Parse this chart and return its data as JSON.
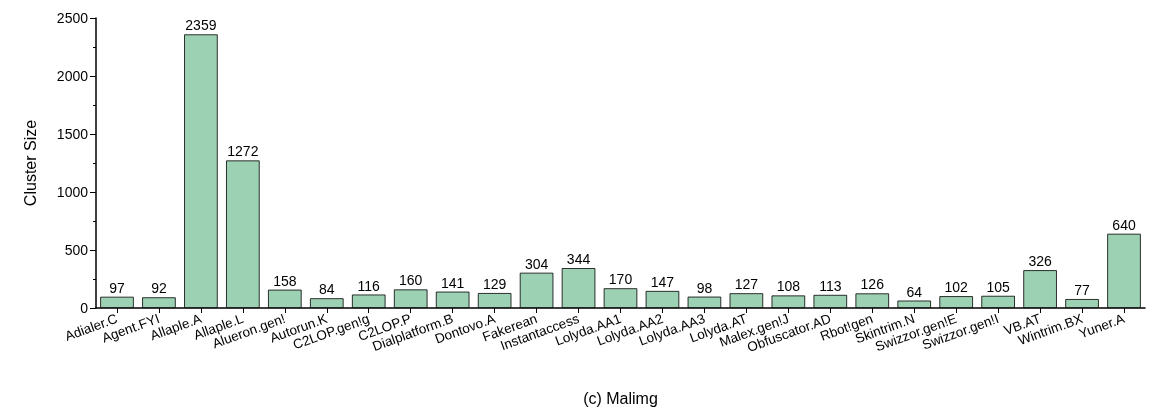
{
  "chart_data": {
    "type": "bar",
    "xlabel": "(c) Malimg",
    "ylabel": "Cluster Size",
    "categories": [
      "Adialer.C",
      "Agent.FYI",
      "Allaple.A",
      "Allaple.L",
      "Alueron.gen!",
      "Autorun.K",
      "C2LOP.gen!g",
      "C2LOP.P",
      "Dialplatform.B",
      "Dontovo.A",
      "Fakerean",
      "Instantaccess",
      "Lolyda.AA1",
      "Lolyda.AA2",
      "Lolyda.AA3",
      "Lolyda.AT",
      "Malex.gen!J",
      "Obfuscator.AD",
      "Rbot!gen",
      "Skintrim.N",
      "Swizzor.gen!E",
      "Swizzor.gen!I",
      "VB.AT",
      "Wintrim.BX",
      "Yuner.A"
    ],
    "values": [
      97,
      92,
      2359,
      1272,
      158,
      84,
      116,
      160,
      141,
      129,
      304,
      344,
      170,
      147,
      98,
      127,
      108,
      113,
      126,
      64,
      102,
      105,
      326,
      77,
      640
    ],
    "color": "#9dd1b3",
    "ylim": [
      0,
      2500
    ],
    "yticks": [
      0,
      500,
      1000,
      1500,
      2000,
      2500
    ],
    "grid": false,
    "data_labels": true
  }
}
